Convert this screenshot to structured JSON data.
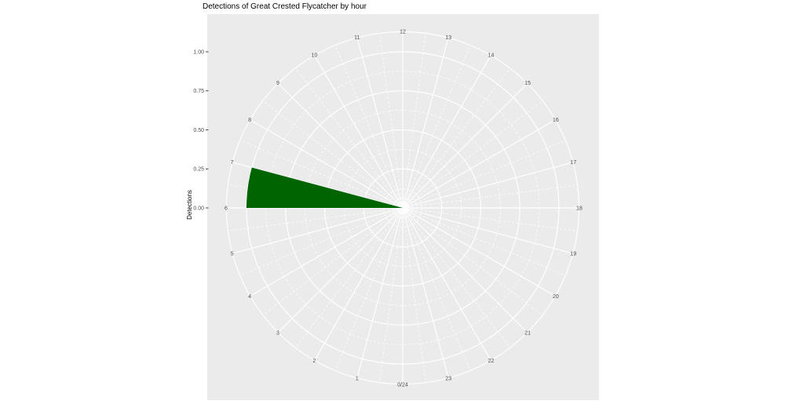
{
  "chart_data": {
    "type": "polar_bar",
    "title": "Detections of Great Crested Flycatcher by hour",
    "ylabel": "Detections",
    "theta_labels": [
      "0/24",
      "1",
      "2",
      "3",
      "4",
      "5",
      "6",
      "7",
      "8",
      "9",
      "10",
      "11",
      "12",
      "13",
      "14",
      "15",
      "16",
      "17",
      "18",
      "19",
      "20",
      "21",
      "22",
      "23"
    ],
    "values": [
      0,
      0,
      0,
      0,
      0,
      0,
      1,
      0,
      0,
      0,
      0,
      0,
      0,
      0,
      0,
      0,
      0,
      0,
      0,
      0,
      0,
      0,
      0,
      0
    ],
    "bar_span_hours": 1,
    "r_axis": {
      "tick_labels": [
        "0.00",
        "0.25",
        "0.50",
        "0.75",
        "1.00"
      ],
      "tick_values": [
        0,
        0.25,
        0.5,
        0.75,
        1.0
      ],
      "minor_values": [
        0.125,
        0.375,
        0.625,
        0.875
      ],
      "ylim": [
        0,
        1
      ]
    },
    "grid": true,
    "legend": "none",
    "colors": {
      "bar_fill": "#006400",
      "panel_bg": "#EBEBEB",
      "gridline": "#FFFFFF",
      "axis_text": "#4D4D4D",
      "tick_mark": "#333333",
      "title_text": "#000000"
    }
  }
}
